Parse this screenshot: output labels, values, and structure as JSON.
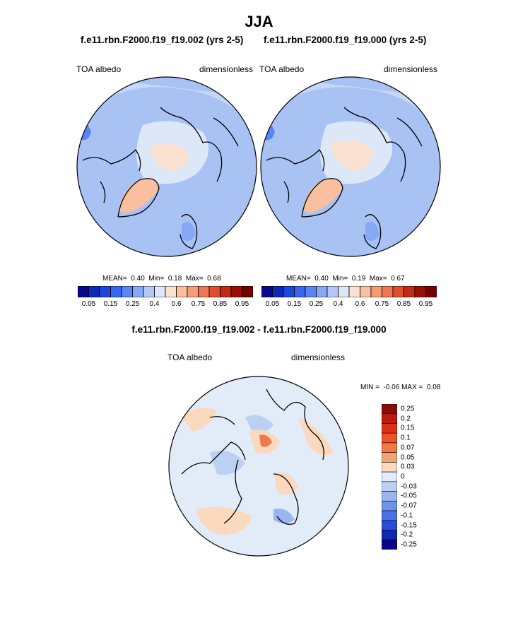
{
  "season": "JJA",
  "panels": [
    {
      "case": "f.e11.rbn.F2000.f19_f19.002 (yrs 2-5)",
      "variable": "TOA albedo",
      "units": "dimensionless",
      "stats": {
        "mean_label": "MEAN=",
        "mean": "0.40",
        "min_label": "Min=",
        "min": "0.18",
        "max_label": "Max=",
        "max": "0.68"
      }
    },
    {
      "case": "f.e11.rbn.F2000.f19_f19.000 (yrs 2-5)",
      "variable": "TOA albedo",
      "units": "dimensionless",
      "stats": {
        "mean_label": "MEAN=",
        "mean": "0.40",
        "min_label": "Min=",
        "min": "0.19",
        "max_label": "Max=",
        "max": "0.67"
      }
    }
  ],
  "colorbar_abs": {
    "colors": [
      "#08088f",
      "#0b2ab8",
      "#1c46dd",
      "#3766ef",
      "#5a86f5",
      "#86a8f5",
      "#b3c9f5",
      "#dce7f8",
      "#fbe1cf",
      "#f9bf9e",
      "#f59c75",
      "#ef7652",
      "#df4d30",
      "#c22a16",
      "#990f08",
      "#700202"
    ],
    "ticks": [
      "0.05",
      "0.15",
      "0.25",
      "0.4",
      "0.6",
      "0.75",
      "0.85",
      "0.95"
    ]
  },
  "diff": {
    "title": "f.e11.rbn.F2000.f19_f19.002 - f.e11.rbn.F2000.f19_f19.000",
    "variable": "TOA albedo",
    "units": "dimensionless",
    "min_label": "MIN =",
    "min": "-0.06",
    "max_label": "MAX =",
    "max": "0.08"
  },
  "colorbar_diff": {
    "colors": [
      "#8b0a0a",
      "#bb1a10",
      "#da3218",
      "#ee5228",
      "#f27848",
      "#f4a274",
      "#fbd9be",
      "#e2ecf9",
      "#bcd0f4",
      "#99b5f0",
      "#6e93ec",
      "#4a70e5",
      "#2a4dd8",
      "#1128b2",
      "#070784"
    ],
    "labels": [
      "0.25",
      "0.2",
      "0.15",
      "0.1",
      "0.07",
      "0.05",
      "0.03",
      "0",
      "-0.03",
      "-0.05",
      "-0.07",
      "-0.1",
      "-0.15",
      "-0.2",
      "-0.25"
    ]
  }
}
